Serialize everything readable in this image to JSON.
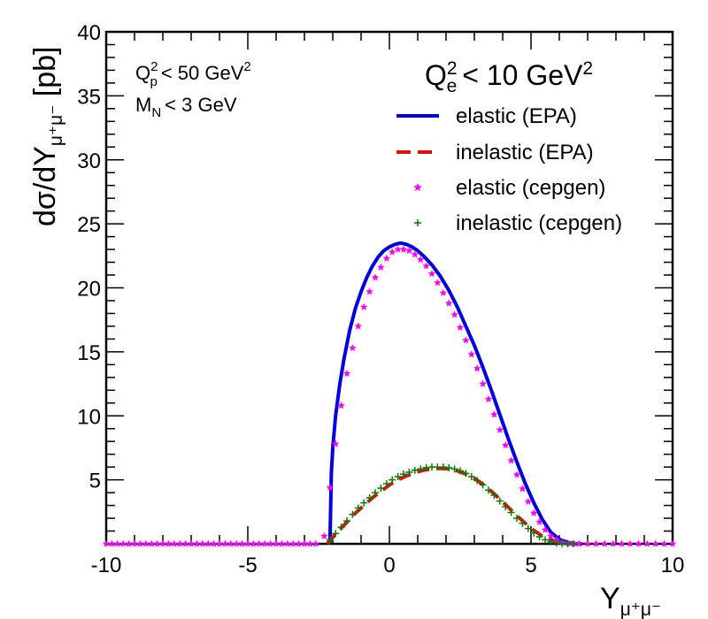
{
  "chart_data": {
    "type": "line",
    "xlabel": "Y",
    "xlabel_sub": "μ⁺μ⁻",
    "ylabel": "dσ/dY",
    "ylabel_sub": "μ⁺μ⁻",
    "ylabel_suffix": " [pb]",
    "xlim": [
      -10,
      10
    ],
    "ylim": [
      0,
      40
    ],
    "x_ticks": [
      -10,
      -5,
      0,
      5,
      10
    ],
    "x_tick_labels": [
      "-10",
      "-5",
      "0",
      "5",
      "10"
    ],
    "y_ticks": [
      5,
      10,
      15,
      20,
      25,
      30,
      35,
      40
    ],
    "y_tick_labels": [
      "5",
      "10",
      "15",
      "20",
      "25",
      "30",
      "35",
      "40"
    ],
    "grid": false,
    "legend_position": "top-right",
    "legend_title": {
      "q": "Q",
      "sup": "2",
      "sub": "e",
      "rest": "< 10 GeV",
      "rest_sup": "2"
    },
    "cuts": [
      {
        "main": "Q",
        "sup": "2",
        "sub": "p",
        "rest": "< 50 GeV",
        "rest_sup": "2"
      },
      {
        "main": "M",
        "sup": "",
        "sub": "N",
        "rest": "< 3 GeV",
        "rest_sup": ""
      }
    ],
    "series": [
      {
        "name": "elastic (EPA)",
        "style": "line",
        "color": "#0000e0",
        "x": [
          -2.1,
          -2.05,
          -2.0,
          -1.9,
          -1.75,
          -1.6,
          -1.4,
          -1.2,
          -1.0,
          -0.8,
          -0.6,
          -0.4,
          -0.2,
          0.0,
          0.2,
          0.4,
          0.6,
          0.8,
          1.0,
          1.2,
          1.5,
          1.8,
          2.1,
          2.4,
          2.7,
          3.0,
          3.3,
          3.6,
          3.9,
          4.2,
          4.5,
          4.8,
          5.1,
          5.4,
          5.7,
          6.0,
          6.3,
          6.6,
          6.8
        ],
        "y": [
          0.0,
          5.5,
          7.5,
          10.0,
          12.5,
          14.5,
          16.7,
          18.4,
          19.7,
          20.8,
          21.7,
          22.4,
          22.9,
          23.2,
          23.4,
          23.5,
          23.4,
          23.2,
          22.9,
          22.5,
          21.8,
          20.9,
          19.8,
          18.5,
          17.0,
          15.5,
          13.8,
          12.0,
          10.1,
          8.2,
          6.4,
          4.7,
          3.2,
          1.9,
          0.9,
          0.35,
          0.1,
          0.02,
          0.0
        ]
      },
      {
        "name": "inelastic (EPA)",
        "style": "dashed",
        "color": "#e01010",
        "x": [
          -2.2,
          -2.0,
          -1.8,
          -1.5,
          -1.2,
          -0.9,
          -0.6,
          -0.3,
          0.0,
          0.3,
          0.6,
          0.9,
          1.2,
          1.5,
          1.8,
          2.1,
          2.4,
          2.7,
          3.0,
          3.3,
          3.6,
          3.9,
          4.2,
          4.5,
          4.8,
          5.1,
          5.4,
          5.7,
          6.0,
          6.3,
          6.6
        ],
        "y": [
          0.0,
          0.5,
          1.0,
          1.7,
          2.4,
          3.0,
          3.6,
          4.1,
          4.6,
          5.0,
          5.3,
          5.55,
          5.75,
          5.85,
          5.9,
          5.85,
          5.7,
          5.45,
          5.1,
          4.65,
          4.1,
          3.5,
          2.85,
          2.2,
          1.6,
          1.05,
          0.6,
          0.3,
          0.1,
          0.03,
          0.0
        ]
      },
      {
        "name": "elastic (cepgen)",
        "style": "star",
        "color": "#ff00ff",
        "x": [
          -10.0,
          -9.8,
          -9.6,
          -9.4,
          -9.2,
          -9.0,
          -8.8,
          -8.6,
          -8.4,
          -8.2,
          -8.0,
          -7.8,
          -7.6,
          -7.4,
          -7.2,
          -7.0,
          -6.8,
          -6.6,
          -6.4,
          -6.2,
          -6.0,
          -5.8,
          -5.6,
          -5.4,
          -5.2,
          -5.0,
          -4.8,
          -4.6,
          -4.4,
          -4.2,
          -4.0,
          -3.8,
          -3.6,
          -3.4,
          -3.2,
          -3.0,
          -2.8,
          -2.6,
          -2.3,
          -2.1,
          -1.9,
          -1.7,
          -1.5,
          -1.3,
          -1.1,
          -0.9,
          -0.7,
          -0.5,
          -0.3,
          -0.1,
          0.1,
          0.3,
          0.5,
          0.7,
          0.9,
          1.1,
          1.3,
          1.5,
          1.7,
          1.9,
          2.1,
          2.3,
          2.5,
          2.7,
          2.9,
          3.1,
          3.3,
          3.5,
          3.7,
          3.9,
          4.1,
          4.3,
          4.5,
          4.7,
          4.9,
          5.1,
          5.3,
          5.5,
          5.7,
          5.9,
          6.1,
          6.3,
          6.5,
          6.7,
          7.0,
          7.3,
          7.6,
          7.9,
          8.2,
          8.5,
          8.8,
          9.1,
          9.4,
          9.7,
          10.0
        ],
        "y": [
          0,
          0,
          0,
          0,
          0,
          0,
          0,
          0,
          0,
          0,
          0,
          0,
          0,
          0,
          0,
          0,
          0,
          0,
          0,
          0,
          0,
          0,
          0,
          0,
          0,
          0,
          0,
          0,
          0,
          0,
          0,
          0,
          0,
          0,
          0,
          0,
          0,
          0,
          0.6,
          4.4,
          7.8,
          10.8,
          13.3,
          15.3,
          17.0,
          18.5,
          19.7,
          20.8,
          21.6,
          22.3,
          22.8,
          23.0,
          23.0,
          22.9,
          22.6,
          22.2,
          21.7,
          21.1,
          20.4,
          19.6,
          18.8,
          17.9,
          16.9,
          15.9,
          14.8,
          13.7,
          12.5,
          11.3,
          10.1,
          8.9,
          7.7,
          6.5,
          5.4,
          4.3,
          3.3,
          2.4,
          1.7,
          1.1,
          0.6,
          0.3,
          0.12,
          0.04,
          0.01,
          0,
          0,
          0,
          0,
          0,
          0,
          0,
          0,
          0,
          0,
          0,
          0
        ]
      },
      {
        "name": "inelastic (cepgen)",
        "style": "plus",
        "color": "#008000",
        "x": [
          -2.1,
          -1.9,
          -1.7,
          -1.5,
          -1.3,
          -1.1,
          -0.9,
          -0.7,
          -0.5,
          -0.3,
          -0.1,
          0.1,
          0.3,
          0.5,
          0.7,
          0.9,
          1.1,
          1.3,
          1.5,
          1.7,
          1.9,
          2.1,
          2.3,
          2.5,
          2.7,
          2.9,
          3.1,
          3.3,
          3.5,
          3.7,
          3.9,
          4.1,
          4.3,
          4.5,
          4.7,
          4.9,
          5.1,
          5.3,
          5.5,
          5.7,
          5.9,
          6.1,
          6.3,
          6.5
        ],
        "y": [
          0.3,
          0.8,
          1.3,
          1.8,
          2.3,
          2.8,
          3.2,
          3.6,
          4.0,
          4.35,
          4.7,
          5.0,
          5.25,
          5.45,
          5.6,
          5.75,
          5.85,
          5.95,
          6.0,
          6.0,
          6.0,
          5.95,
          5.85,
          5.7,
          5.5,
          5.25,
          4.95,
          4.6,
          4.2,
          3.8,
          3.35,
          2.9,
          2.45,
          2.0,
          1.6,
          1.2,
          0.85,
          0.55,
          0.32,
          0.16,
          0.07,
          0.02,
          0.01,
          0.0
        ]
      }
    ]
  }
}
